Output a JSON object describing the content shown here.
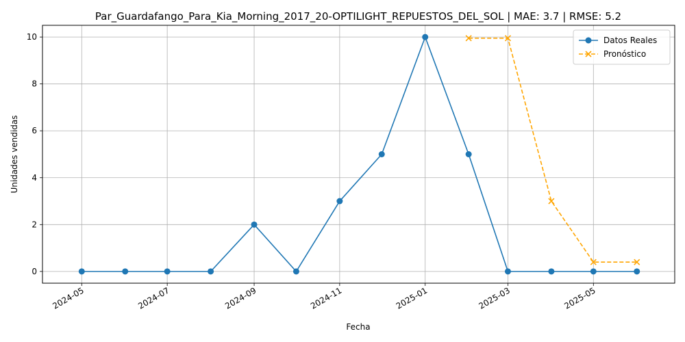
{
  "chart_data": {
    "type": "line",
    "title": "Par_Guardafango_Para_Kia_Morning_2017_20-OPTILIGHT_REPUESTOS_DEL_SOL | MAE: 3.7 | RMSE: 5.2",
    "xlabel": "Fecha",
    "ylabel": "Unidades vendidas",
    "grid": true,
    "legend_position": "top-right",
    "xlim": [
      "2024-04-03",
      "2025-06-28"
    ],
    "ylim": [
      -0.5,
      10.5
    ],
    "x_ticks": [
      "2024-05",
      "2024-07",
      "2024-09",
      "2024-11",
      "2025-01",
      "2025-03",
      "2025-05"
    ],
    "y_ticks": [
      0,
      2,
      4,
      6,
      8,
      10
    ],
    "series": [
      {
        "name": "Datos Reales",
        "color": "#1f77b4",
        "line_style": "solid",
        "marker": "circle",
        "x": [
          "2024-05-01",
          "2024-06-01",
          "2024-07-01",
          "2024-08-01",
          "2024-09-01",
          "2024-10-01",
          "2024-11-01",
          "2024-12-01",
          "2025-01-01",
          "2025-02-01",
          "2025-03-01",
          "2025-04-01",
          "2025-05-01",
          "2025-06-01"
        ],
        "values": [
          0,
          0,
          0,
          0,
          2,
          0,
          3,
          5,
          10,
          5,
          0,
          0,
          0,
          0
        ]
      },
      {
        "name": "Pronóstico",
        "color": "#ffa500",
        "line_style": "dashed",
        "marker": "x",
        "x": [
          "2025-02-01",
          "2025-03-01",
          "2025-04-01",
          "2025-05-01",
          "2025-06-01"
        ],
        "values": [
          9.95,
          9.95,
          3.0,
          0.4,
          0.4
        ]
      }
    ]
  }
}
